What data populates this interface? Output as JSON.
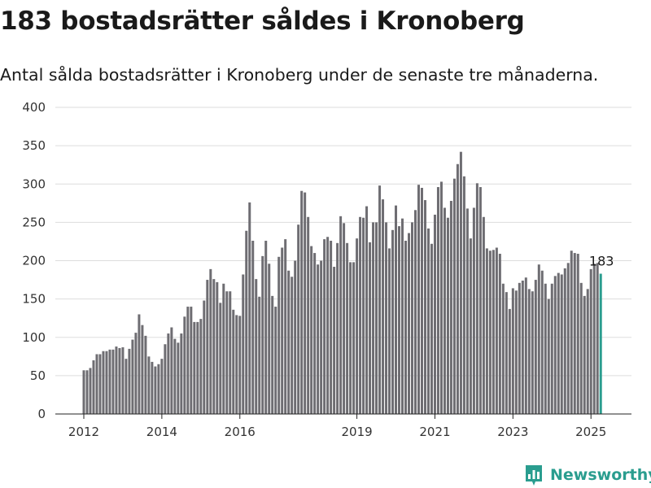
{
  "title": "183 bostadsrätter såldes i Kronoberg",
  "subtitle": "Antal sålda bostadsrätter i Kronoberg under de senaste tre månaderna.",
  "brand": {
    "name": "Newsworthy",
    "icon": "bar-chart-logo-icon"
  },
  "colors": {
    "bar": "#6e6d72",
    "highlight": "#2a9d8f",
    "grid": "#dddddd",
    "axis": "#222222"
  },
  "chart_data": {
    "type": "bar",
    "title": "183 bostadsrätter såldes i Kronoberg",
    "subtitle": "Antal sålda bostadsrätter i Kronoberg under de senaste tre månaderna.",
    "xlabel": "",
    "ylabel": "",
    "ylim": [
      0,
      400
    ],
    "yticks": [
      0,
      50,
      100,
      150,
      200,
      250,
      300,
      350,
      400
    ],
    "grid": true,
    "legend": "none",
    "x_start": "2012-01",
    "frequency": "monthly",
    "xticks": [
      {
        "label": "2012",
        "month": "2012-01"
      },
      {
        "label": "2014",
        "month": "2014-01"
      },
      {
        "label": "2016",
        "month": "2016-01"
      },
      {
        "label": "2019",
        "month": "2019-01"
      },
      {
        "label": "2021",
        "month": "2021-01"
      },
      {
        "label": "2023",
        "month": "2023-01"
      },
      {
        "label": "2025",
        "month": "2025-01"
      }
    ],
    "values": [
      57,
      57,
      60,
      70,
      78,
      78,
      82,
      82,
      84,
      84,
      88,
      86,
      87,
      72,
      85,
      97,
      106,
      130,
      116,
      102,
      75,
      68,
      62,
      65,
      72,
      91,
      105,
      113,
      98,
      93,
      105,
      127,
      140,
      140,
      120,
      120,
      124,
      148,
      175,
      189,
      176,
      172,
      145,
      170,
      160,
      160,
      136,
      129,
      128,
      182,
      239,
      276,
      226,
      176,
      153,
      206,
      226,
      196,
      154,
      140,
      205,
      217,
      228,
      187,
      179,
      200,
      247,
      291,
      289,
      257,
      219,
      210,
      195,
      200,
      228,
      231,
      226,
      192,
      223,
      258,
      249,
      223,
      198,
      198,
      229,
      257,
      256,
      271,
      224,
      250,
      250,
      298,
      280,
      250,
      216,
      240,
      272,
      245,
      255,
      226,
      236,
      250,
      266,
      299,
      295,
      279,
      242,
      222,
      260,
      296,
      303,
      269,
      256,
      278,
      307,
      326,
      342,
      310,
      268,
      229,
      269,
      301,
      296,
      257,
      216,
      213,
      214,
      217,
      209,
      170,
      159,
      137,
      164,
      161,
      171,
      174,
      178,
      163,
      160,
      175,
      195,
      187,
      170,
      150,
      170,
      180,
      184,
      182,
      190,
      197,
      213,
      210,
      209,
      171,
      154,
      163,
      189,
      196,
      197,
      183
    ],
    "highlight_last": true,
    "annotations": [
      {
        "text": "183",
        "target": "last"
      }
    ]
  }
}
